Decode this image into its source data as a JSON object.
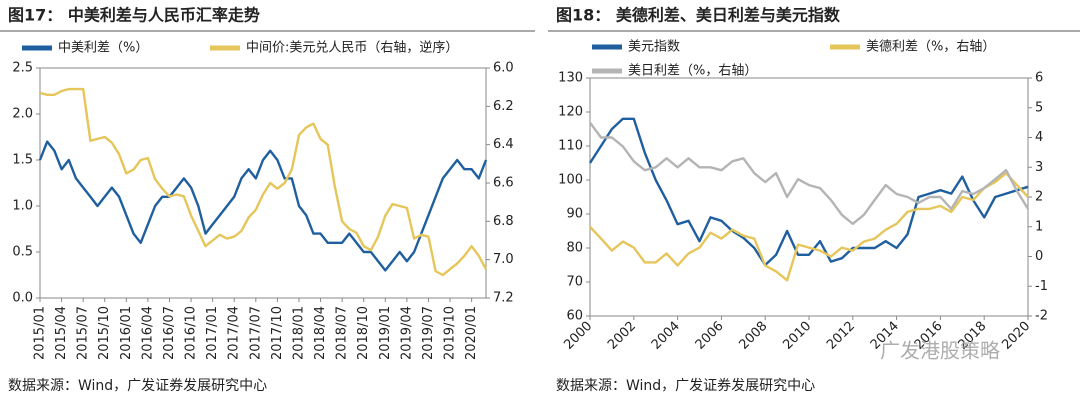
{
  "charts": [
    {
      "type": "line",
      "title": "图17： 中美利差与人民币汇率走势",
      "x": [
        "2015/01",
        "2015/02",
        "2015/03",
        "2015/04",
        "2015/05",
        "2015/06",
        "2015/07",
        "2015/08",
        "2015/09",
        "2015/10",
        "2015/11",
        "2015/12",
        "2016/01",
        "2016/02",
        "2016/03",
        "2016/04",
        "2016/05",
        "2016/06",
        "2016/07",
        "2016/08",
        "2016/09",
        "2016/10",
        "2016/11",
        "2016/12",
        "2017/01",
        "2017/02",
        "2017/03",
        "2017/04",
        "2017/05",
        "2017/06",
        "2017/07",
        "2017/08",
        "2017/09",
        "2017/10",
        "2017/11",
        "2017/12",
        "2018/01",
        "2018/02",
        "2018/03",
        "2018/04",
        "2018/05",
        "2018/06",
        "2018/07",
        "2018/08",
        "2018/09",
        "2018/10",
        "2018/11",
        "2018/12",
        "2019/01",
        "2019/02",
        "2019/03",
        "2019/04",
        "2019/05",
        "2019/06",
        "2019/07",
        "2019/08",
        "2019/09",
        "2019/10",
        "2019/11",
        "2019/12",
        "2020/01",
        "2020/02",
        "2020/03"
      ],
      "xticks": [
        "2015/01",
        "2015/04",
        "2015/07",
        "2015/10",
        "2016/01",
        "2016/04",
        "2016/07",
        "2016/10",
        "2017/01",
        "2017/04",
        "2017/07",
        "2017/10",
        "2018/01",
        "2018/04",
        "2018/07",
        "2018/10",
        "2019/01",
        "2019/04",
        "2019/07",
        "2019/10",
        "2020/01"
      ],
      "series": [
        {
          "name": "中美利差（%）",
          "color": "#1f5fa0",
          "values": [
            1.5,
            1.7,
            1.6,
            1.4,
            1.5,
            1.3,
            1.2,
            1.1,
            1.0,
            1.1,
            1.2,
            1.1,
            0.9,
            0.7,
            0.6,
            0.8,
            1.0,
            1.1,
            1.1,
            1.2,
            1.3,
            1.2,
            1.0,
            0.7,
            0.8,
            0.9,
            1.0,
            1.1,
            1.3,
            1.4,
            1.3,
            1.5,
            1.6,
            1.5,
            1.3,
            1.3,
            1.0,
            0.9,
            0.7,
            0.7,
            0.6,
            0.6,
            0.6,
            0.7,
            0.6,
            0.5,
            0.5,
            0.4,
            0.3,
            0.4,
            0.5,
            0.4,
            0.5,
            0.7,
            0.9,
            1.1,
            1.3,
            1.4,
            1.5,
            1.4,
            1.4,
            1.3,
            1.5
          ]
        },
        {
          "name": "中间价:美元兑人民币（右轴，逆序）",
          "color": "#e6c65a",
          "axis": "y2",
          "values": [
            6.13,
            6.14,
            6.14,
            6.12,
            6.11,
            6.11,
            6.11,
            6.38,
            6.37,
            6.36,
            6.39,
            6.45,
            6.55,
            6.53,
            6.48,
            6.47,
            6.58,
            6.63,
            6.67,
            6.66,
            6.67,
            6.77,
            6.85,
            6.93,
            6.9,
            6.87,
            6.89,
            6.88,
            6.85,
            6.78,
            6.74,
            6.66,
            6.6,
            6.63,
            6.6,
            6.53,
            6.35,
            6.31,
            6.29,
            6.37,
            6.4,
            6.62,
            6.8,
            6.84,
            6.86,
            6.93,
            6.95,
            6.88,
            6.77,
            6.71,
            6.72,
            6.73,
            6.89,
            6.87,
            6.88,
            7.06,
            7.08,
            7.05,
            7.02,
            6.98,
            6.93,
            6.98,
            7.05
          ]
        }
      ],
      "ylim": [
        0,
        2.5
      ],
      "yticks": [
        {
          "value": 0,
          "label": "0.0"
        },
        0.5,
        {
          "value": 1,
          "label": "1.0"
        },
        1.5,
        {
          "value": 2,
          "label": "2.0"
        },
        2.5
      ],
      "y2lim": [
        6.0,
        7.2
      ],
      "y2ticks": [
        {
          "value": 6,
          "label": "6.0"
        },
        6.2,
        6.4,
        6.6,
        6.8,
        {
          "value": 7,
          "label": "7.0"
        },
        7.2
      ],
      "y2_inverted": true,
      "source": "数据来源：Wind，广发证券发展研究中心"
    },
    {
      "type": "line",
      "title": "图18： 美德利差、美日利差与美元指数",
      "x": [
        2000,
        2000.5,
        2001,
        2001.5,
        2002,
        2002.5,
        2003,
        2003.5,
        2004,
        2004.5,
        2005,
        2005.5,
        2006,
        2006.5,
        2007,
        2007.5,
        2008,
        2008.5,
        2009,
        2009.5,
        2010,
        2010.5,
        2011,
        2011.5,
        2012,
        2012.5,
        2013,
        2013.5,
        2014,
        2014.5,
        2015,
        2015.5,
        2016,
        2016.5,
        2017,
        2017.5,
        2018,
        2018.5,
        2019,
        2019.5,
        2020
      ],
      "xlim": [
        2000,
        2020
      ],
      "xticks": [
        2000,
        2002,
        2004,
        2006,
        2008,
        2010,
        2012,
        2014,
        2016,
        2018,
        2020
      ],
      "series": [
        {
          "name": "美元指数",
          "color": "#1f5fa0",
          "values": [
            105,
            110,
            115,
            118,
            118,
            108,
            100,
            94,
            87,
            88,
            82,
            89,
            88,
            85,
            83,
            80,
            75,
            78,
            85,
            78,
            78,
            82,
            76,
            77,
            80,
            80,
            80,
            82,
            80,
            84,
            95,
            96,
            97,
            96,
            101,
            94,
            89,
            95,
            96,
            97,
            98
          ]
        },
        {
          "name": "美德利差（%，右轴）",
          "color": "#e6c65a",
          "axis": "y2",
          "values": [
            1.0,
            0.6,
            0.2,
            0.5,
            0.3,
            -0.2,
            -0.2,
            0.1,
            -0.3,
            0.1,
            0.3,
            0.8,
            0.6,
            0.9,
            0.7,
            0.6,
            -0.3,
            -0.5,
            -0.8,
            0.4,
            0.3,
            0.2,
            0.0,
            0.3,
            0.2,
            0.5,
            0.6,
            0.9,
            1.1,
            1.5,
            1.6,
            1.6,
            1.7,
            1.5,
            2.0,
            1.9,
            2.3,
            2.5,
            2.8,
            2.4,
            2.0
          ]
        },
        {
          "name": "美日利差（%，右轴）",
          "color": "#b4b4b4",
          "axis": "y2",
          "values": [
            4.5,
            4.0,
            4.0,
            3.7,
            3.2,
            2.9,
            3.0,
            3.3,
            3.0,
            3.3,
            3.0,
            3.0,
            2.9,
            3.2,
            3.3,
            2.8,
            2.5,
            2.8,
            2.0,
            2.6,
            2.4,
            2.3,
            1.9,
            1.4,
            1.1,
            1.4,
            1.9,
            2.4,
            2.1,
            2.0,
            1.8,
            2.0,
            2.0,
            1.6,
            2.2,
            2.1,
            2.3,
            2.6,
            2.9,
            2.2,
            1.6
          ]
        }
      ],
      "ylim": [
        60,
        130
      ],
      "yticks": [
        60,
        70,
        80,
        90,
        100,
        110,
        120,
        130
      ],
      "y2lim": [
        -2,
        6
      ],
      "y2ticks": [
        -2,
        -1,
        0,
        1,
        2,
        3,
        4,
        5,
        6
      ],
      "source": "数据来源：Wind，广发证券发展研究中心",
      "watermark": "广发港股策略"
    }
  ]
}
